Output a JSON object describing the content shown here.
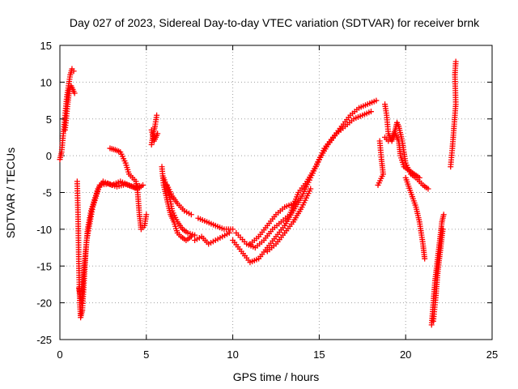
{
  "chart_data": {
    "type": "scatter",
    "title": "Day 027 of 2023, Sidereal Day-to-day VTEC variation (SDTVAR) for receiver brnk",
    "xlabel": "GPS time / hours",
    "ylabel": "SDTVAR / TECUs",
    "xlim": [
      0,
      25
    ],
    "ylim": [
      -25,
      15
    ],
    "xticks": [
      0,
      5,
      10,
      15,
      20,
      25
    ],
    "yticks": [
      -25,
      -20,
      -15,
      -10,
      -5,
      0,
      5,
      10,
      15
    ],
    "grid": true,
    "legend": "none",
    "marker": "+",
    "color": "#ff0000",
    "series": [
      {
        "name": "arc1",
        "points": [
          [
            0.0,
            -0.5
          ],
          [
            0.1,
            0.5
          ],
          [
            0.2,
            3.0
          ],
          [
            0.3,
            5.5
          ],
          [
            0.4,
            8.0
          ],
          [
            0.5,
            9.5
          ],
          [
            0.6,
            11.0
          ],
          [
            0.7,
            11.8
          ],
          [
            0.8,
            11.5
          ]
        ]
      },
      {
        "name": "arc1b",
        "points": [
          [
            0.3,
            3.5
          ],
          [
            0.45,
            7.0
          ],
          [
            0.55,
            9.0
          ],
          [
            0.65,
            9.5
          ],
          [
            0.75,
            9.0
          ],
          [
            0.85,
            8.5
          ]
        ]
      },
      {
        "name": "arc2",
        "points": [
          [
            1.0,
            -3.5
          ],
          [
            1.05,
            -8.0
          ],
          [
            1.1,
            -15.0
          ],
          [
            1.15,
            -20.0
          ],
          [
            1.2,
            -22.0
          ],
          [
            1.3,
            -21.0
          ],
          [
            1.4,
            -17.0
          ],
          [
            1.5,
            -13.0
          ],
          [
            1.6,
            -10.0
          ],
          [
            1.8,
            -7.5
          ],
          [
            2.0,
            -6.0
          ],
          [
            2.2,
            -4.5
          ],
          [
            2.5,
            -3.5
          ],
          [
            3.0,
            -4.0
          ],
          [
            3.5,
            -3.5
          ],
          [
            4.0,
            -4.0
          ],
          [
            4.5,
            -4.5
          ],
          [
            4.8,
            -4.0
          ]
        ]
      },
      {
        "name": "arc2b",
        "points": [
          [
            1.1,
            -18.0
          ],
          [
            1.25,
            -20.0
          ],
          [
            1.35,
            -16.5
          ],
          [
            1.55,
            -11.5
          ],
          [
            1.9,
            -7.0
          ],
          [
            2.3,
            -4.0
          ],
          [
            2.8,
            -3.8
          ],
          [
            3.3,
            -4.2
          ],
          [
            3.8,
            -3.9
          ],
          [
            4.3,
            -4.3
          ],
          [
            4.6,
            -4.1
          ]
        ]
      },
      {
        "name": "arc3",
        "points": [
          [
            2.9,
            1.0
          ],
          [
            3.2,
            0.8
          ],
          [
            3.5,
            0.5
          ],
          [
            3.8,
            -1.0
          ],
          [
            4.0,
            -2.5
          ],
          [
            4.2,
            -3.0
          ],
          [
            4.4,
            -3.5
          ],
          [
            4.5,
            -5.0
          ],
          [
            4.6,
            -8.0
          ],
          [
            4.7,
            -10.0
          ],
          [
            4.9,
            -9.5
          ],
          [
            5.0,
            -8.0
          ]
        ]
      },
      {
        "name": "arc4",
        "points": [
          [
            5.3,
            1.5
          ],
          [
            5.4,
            3.0
          ],
          [
            5.5,
            4.0
          ],
          [
            5.6,
            5.5
          ]
        ]
      },
      {
        "name": "arc4b",
        "points": [
          [
            5.3,
            3.5
          ],
          [
            5.45,
            2.0
          ],
          [
            5.55,
            2.5
          ],
          [
            5.65,
            3.0
          ]
        ]
      },
      {
        "name": "arc5",
        "points": [
          [
            5.9,
            -1.5
          ],
          [
            6.0,
            -4.0
          ],
          [
            6.2,
            -6.0
          ],
          [
            6.4,
            -8.0
          ],
          [
            6.6,
            -9.0
          ],
          [
            6.8,
            -10.5
          ],
          [
            7.0,
            -11.0
          ],
          [
            7.3,
            -11.5
          ],
          [
            7.6,
            -11.0
          ]
        ]
      },
      {
        "name": "arc5b",
        "points": [
          [
            6.0,
            -3.0
          ],
          [
            6.3,
            -5.0
          ],
          [
            6.5,
            -7.5
          ],
          [
            6.8,
            -9.0
          ],
          [
            7.1,
            -10.0
          ],
          [
            7.4,
            -10.5
          ],
          [
            7.8,
            -10.8
          ]
        ]
      },
      {
        "name": "arc6",
        "points": [
          [
            6.2,
            -4.0
          ],
          [
            6.5,
            -5.5
          ],
          [
            6.8,
            -6.5
          ],
          [
            7.2,
            -7.5
          ],
          [
            7.6,
            -8.0
          ]
        ]
      },
      {
        "name": "arc7",
        "points": [
          [
            7.8,
            -11.5
          ],
          [
            8.2,
            -11.0
          ],
          [
            8.6,
            -12.0
          ],
          [
            9.0,
            -11.5
          ],
          [
            9.4,
            -11.0
          ],
          [
            9.8,
            -10.5
          ]
        ]
      },
      {
        "name": "arc7b",
        "points": [
          [
            8.0,
            -8.5
          ],
          [
            8.5,
            -9.0
          ],
          [
            9.0,
            -9.5
          ],
          [
            9.5,
            -10.0
          ],
          [
            10.0,
            -10.0
          ]
        ]
      },
      {
        "name": "arc8",
        "points": [
          [
            10.0,
            -11.5
          ],
          [
            10.5,
            -13.0
          ],
          [
            11.0,
            -14.5
          ],
          [
            11.5,
            -14.0
          ],
          [
            12.0,
            -12.5
          ],
          [
            12.5,
            -11.0
          ],
          [
            13.0,
            -9.5
          ],
          [
            13.5,
            -7.5
          ],
          [
            14.0,
            -5.5
          ],
          [
            14.5,
            -3.0
          ],
          [
            15.0,
            -0.5
          ],
          [
            15.5,
            1.5
          ],
          [
            16.0,
            3.0
          ],
          [
            16.5,
            4.0
          ],
          [
            17.0,
            5.0
          ],
          [
            17.5,
            5.5
          ],
          [
            18.0,
            6.0
          ]
        ]
      },
      {
        "name": "arc8b",
        "points": [
          [
            10.2,
            -10.5
          ],
          [
            10.8,
            -12.0
          ],
          [
            11.3,
            -12.5
          ],
          [
            11.8,
            -11.5
          ],
          [
            12.3,
            -10.0
          ],
          [
            12.8,
            -9.0
          ],
          [
            13.3,
            -8.0
          ],
          [
            13.8,
            -5.0
          ],
          [
            14.3,
            -3.5
          ],
          [
            14.8,
            -1.5
          ],
          [
            15.3,
            1.0
          ],
          [
            15.8,
            2.5
          ],
          [
            16.3,
            4.0
          ],
          [
            16.8,
            5.5
          ],
          [
            17.3,
            6.5
          ],
          [
            17.8,
            7.0
          ],
          [
            18.3,
            7.5
          ]
        ]
      },
      {
        "name": "arc8c",
        "points": [
          [
            11.0,
            -12.0
          ],
          [
            11.5,
            -11.0
          ],
          [
            12.0,
            -9.5
          ],
          [
            12.5,
            -8.0
          ],
          [
            13.0,
            -7.0
          ],
          [
            13.5,
            -6.5
          ]
        ]
      },
      {
        "name": "arc8d",
        "points": [
          [
            12.0,
            -13.0
          ],
          [
            12.5,
            -12.0
          ],
          [
            13.0,
            -10.5
          ],
          [
            13.5,
            -9.0
          ],
          [
            14.0,
            -7.0
          ],
          [
            14.5,
            -4.5
          ]
        ]
      },
      {
        "name": "arc9",
        "points": [
          [
            18.8,
            2.5
          ],
          [
            19.0,
            2.0
          ],
          [
            19.2,
            2.5
          ],
          [
            19.4,
            3.5
          ],
          [
            19.5,
            4.5
          ],
          [
            19.6,
            4.0
          ],
          [
            19.8,
            2.0
          ],
          [
            20.0,
            -1.0
          ],
          [
            20.3,
            -2.5
          ],
          [
            20.6,
            -3.0
          ],
          [
            21.0,
            -4.0
          ],
          [
            21.3,
            -4.5
          ]
        ]
      },
      {
        "name": "arc9b",
        "points": [
          [
            18.8,
            7.0
          ],
          [
            18.9,
            5.5
          ],
          [
            19.0,
            3.0
          ],
          [
            19.2,
            2.0
          ],
          [
            19.4,
            3.0
          ],
          [
            19.6,
            2.0
          ],
          [
            19.7,
            0.0
          ],
          [
            19.9,
            -1.5
          ],
          [
            20.2,
            -2.0
          ],
          [
            20.5,
            -2.5
          ],
          [
            20.8,
            -3.0
          ]
        ]
      },
      {
        "name": "arc9c",
        "points": [
          [
            18.5,
            2.0
          ],
          [
            18.6,
            -0.5
          ],
          [
            18.7,
            -2.5
          ],
          [
            18.4,
            -4.0
          ]
        ]
      },
      {
        "name": "arc10",
        "points": [
          [
            20.0,
            -3.0
          ],
          [
            20.3,
            -5.0
          ],
          [
            20.6,
            -7.0
          ],
          [
            20.8,
            -9.0
          ],
          [
            21.0,
            -12.0
          ],
          [
            21.1,
            -14.0
          ]
        ]
      },
      {
        "name": "arc11",
        "points": [
          [
            21.5,
            -23.0
          ],
          [
            21.6,
            -20.0
          ],
          [
            21.7,
            -17.0
          ],
          [
            21.8,
            -15.0
          ],
          [
            21.9,
            -13.0
          ],
          [
            22.0,
            -11.0
          ],
          [
            22.1,
            -9.0
          ],
          [
            22.2,
            -8.0
          ]
        ]
      },
      {
        "name": "arc11b",
        "points": [
          [
            21.6,
            -22.5
          ],
          [
            21.75,
            -19.0
          ],
          [
            21.85,
            -16.0
          ],
          [
            21.95,
            -14.0
          ],
          [
            22.05,
            -12.0
          ],
          [
            22.15,
            -10.0
          ]
        ]
      },
      {
        "name": "arc12",
        "points": [
          [
            22.6,
            -1.5
          ],
          [
            22.7,
            1.0
          ],
          [
            22.8,
            4.0
          ],
          [
            22.9,
            7.0
          ],
          [
            22.85,
            11.0
          ],
          [
            22.9,
            12.8
          ]
        ]
      }
    ]
  }
}
